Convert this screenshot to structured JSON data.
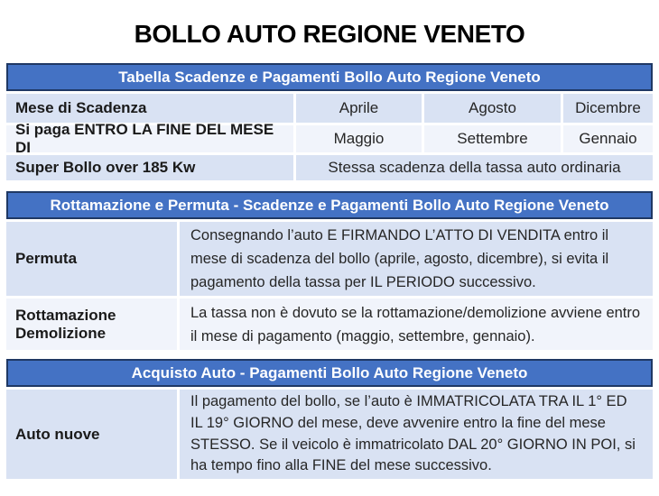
{
  "title": "BOLLO AUTO REGIONE VENETO",
  "colors": {
    "page_bg": "#FFFFFF",
    "header_bg": "#4472C4",
    "header_text": "#FFFFFF",
    "header_border": "#1F3864",
    "band_dark": "#D9E2F3",
    "band_light": "#F1F4FB",
    "label_text": "#1A1A1A",
    "text": "#262626"
  },
  "tables": [
    {
      "header": "Tabella Scadenze e Pagamenti Bollo Auto Regione Veneto",
      "rows": [
        {
          "label": "Mese di Scadenza",
          "cells": [
            "Aprile",
            "Agosto",
            "Dicembre"
          ]
        },
        {
          "label": "Si paga ENTRO LA FINE DEL MESE DI",
          "cells": [
            "Maggio",
            "Settembre",
            "Gennaio"
          ]
        },
        {
          "label": "Super Bollo over 185 Kw",
          "span": "Stessa scadenza della tassa auto ordinaria"
        }
      ]
    },
    {
      "header": "Rottamazione e Permuta - Scadenze e Pagamenti Bollo Auto Regione Veneto",
      "rows": [
        {
          "label": "Permuta",
          "text": "Consegnando l’auto E FIRMANDO L’ATTO DI VENDITA entro il mese di scadenza del bollo (aprile, agosto, dicembre), si evita il pagamento della tassa per IL PERIODO successivo."
        },
        {
          "label": "Rottamazione Demolizione",
          "text": "La tassa non è dovuto se la rottamazione/demolizione avviene entro il mese di pagamento (maggio, settembre, gennaio)."
        }
      ]
    },
    {
      "header": "Acquisto Auto - Pagamenti Bollo Auto Regione Veneto",
      "rows": [
        {
          "label": "Auto nuove",
          "text": "Il pagamento del bollo, se l’auto è IMMATRICOLATA TRA IL 1° ED IL 19° GIORNO del mese, deve avvenire entro la fine del mese STESSO. Se il veicolo è immatricolato DAL 20° GIORNO IN POI, si ha tempo fino alla FINE del mese successivo."
        }
      ]
    }
  ]
}
